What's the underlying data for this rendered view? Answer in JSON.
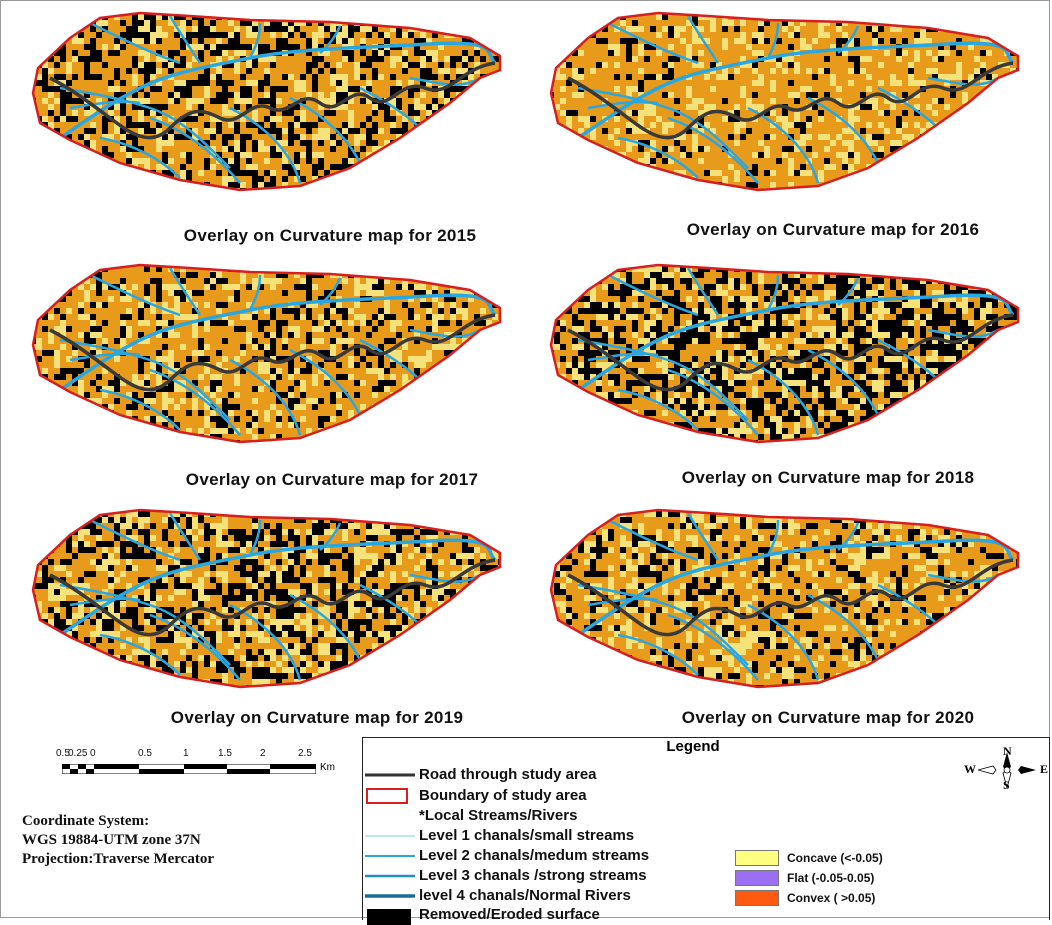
{
  "panels": [
    {
      "caption": "Overlay on Curvature map for 2015",
      "dark_fraction": 0.5
    },
    {
      "caption": "Overlay on  Curvature map for 2016",
      "dark_fraction": 0.2
    },
    {
      "caption": "Overlay on Curvature map for 2017",
      "dark_fraction": 0.35
    },
    {
      "caption": "Overlay on  Curvature  map for 2018",
      "dark_fraction": 0.7
    },
    {
      "caption": "Overlay on Curvature  map for 2019",
      "dark_fraction": 0.55
    },
    {
      "caption": "Overlay on Curvature map for 2020",
      "dark_fraction": 0.35
    }
  ],
  "scale": {
    "labels": [
      "0.5",
      "0.25",
      "0",
      "0.5",
      "1",
      "1.5",
      "2",
      "2.5"
    ],
    "unit": "Km"
  },
  "coordinate_info": [
    "Coordinate System:",
    "WGS 19884-UTM zone 37N",
    "Projection:Traverse Mercator"
  ],
  "legend": {
    "title": "Legend",
    "items": [
      {
        "label": "Road through study area",
        "symbol": "road",
        "color": "#333333"
      },
      {
        "label": "Boundary of study area",
        "symbol": "boundary",
        "color": "#d62020"
      },
      {
        "label": "*Local Streams/Rivers",
        "symbol": "none",
        "color": ""
      },
      {
        "label": "Level 1 chanals/small streams",
        "symbol": "line-thin",
        "color": "#7fd6c8"
      },
      {
        "label": "Level 2 chanals/medum streams",
        "symbol": "line",
        "color": "#29a8e0"
      },
      {
        "label": "Level 3 chanals /strong streams",
        "symbol": "line",
        "color": "#1e8fc8"
      },
      {
        "label": "level 4 chanals/Normal Rivers",
        "symbol": "line-thick",
        "color": "#1a6e96"
      },
      {
        "label": "Removed/Eroded surface",
        "symbol": "fill",
        "color": "#000000"
      }
    ],
    "swatches": [
      {
        "label": "Concave (<-0.05)",
        "color": "#ffff80"
      },
      {
        "label": "Flat (-0.05-0.05)",
        "color": "#9a6ff2"
      },
      {
        "label": "Convex ( >0.05)",
        "color": "#ff5a12"
      }
    ]
  },
  "compass": {
    "n": "N",
    "s": "S",
    "w": "W",
    "e": "E"
  },
  "colors": {
    "concave": "#f5e27a",
    "convex": "#e89a1a",
    "eroded": "#000000",
    "stream": "#2aa7e0",
    "road": "#3a3a3a",
    "boundary": "#d62020"
  }
}
